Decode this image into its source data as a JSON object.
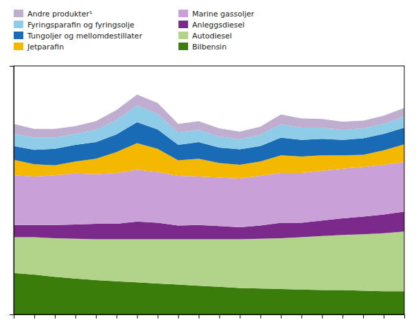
{
  "chart_data": {
    "type": "area",
    "stacked": true,
    "categories": [
      null,
      null,
      null,
      null,
      null,
      null,
      null,
      null,
      null,
      null,
      null,
      null,
      null,
      null,
      null,
      null,
      null,
      null,
      null,
      null
    ],
    "series": [
      {
        "name": "Bilbensin",
        "color": "#3a7d0a",
        "values": [
          75,
          72,
          68,
          65,
          62,
          60,
          58,
          56,
          54,
          52,
          50,
          48,
          47,
          46,
          45,
          44,
          44,
          43,
          42,
          42
        ]
      },
      {
        "name": "Autodiesel",
        "color": "#b2d48a",
        "values": [
          65,
          68,
          70,
          72,
          74,
          76,
          78,
          80,
          82,
          84,
          86,
          88,
          90,
          92,
          95,
          98,
          100,
          102,
          105,
          108
        ]
      },
      {
        "name": "Anleggsdiesel",
        "color": "#7b2a8b",
        "values": [
          22,
          22,
          24,
          26,
          28,
          28,
          32,
          30,
          25,
          26,
          24,
          22,
          24,
          28,
          26,
          28,
          30,
          32,
          34,
          36
        ]
      },
      {
        "name": "Marine gassoljer",
        "color": "#c9a0d8",
        "values": [
          90,
          88,
          90,
          92,
          90,
          92,
          94,
          92,
          90,
          88,
          88,
          88,
          90,
          90,
          90,
          90,
          90,
          90,
          90,
          90
        ]
      },
      {
        "name": "Jetparafin",
        "color": "#f5b800",
        "values": [
          28,
          22,
          18,
          22,
          28,
          38,
          48,
          42,
          28,
          32,
          26,
          25,
          26,
          32,
          30,
          28,
          24,
          22,
          26,
          32
        ]
      },
      {
        "name": "Tungoljer og mellomdestillater",
        "color": "#1a6bb5",
        "values": [
          25,
          26,
          30,
          30,
          30,
          32,
          38,
          35,
          28,
          30,
          28,
          28,
          28,
          32,
          30,
          30,
          28,
          30,
          30,
          30
        ]
      },
      {
        "name": "Fyringsparafin og fyringsolje",
        "color": "#8ecce8",
        "values": [
          22,
          22,
          20,
          20,
          22,
          26,
          30,
          28,
          22,
          22,
          20,
          18,
          20,
          24,
          22,
          20,
          18,
          18,
          18,
          20
        ]
      },
      {
        "name": "Andre produkter¹",
        "color": "#c0aed0",
        "values": [
          18,
          16,
          16,
          14,
          16,
          18,
          20,
          20,
          16,
          16,
          15,
          14,
          15,
          18,
          17,
          16,
          15,
          14,
          15,
          16
        ]
      }
    ],
    "ylim": [
      0,
      450
    ],
    "grid": false,
    "legend": "upper left",
    "tick_labels": false
  }
}
